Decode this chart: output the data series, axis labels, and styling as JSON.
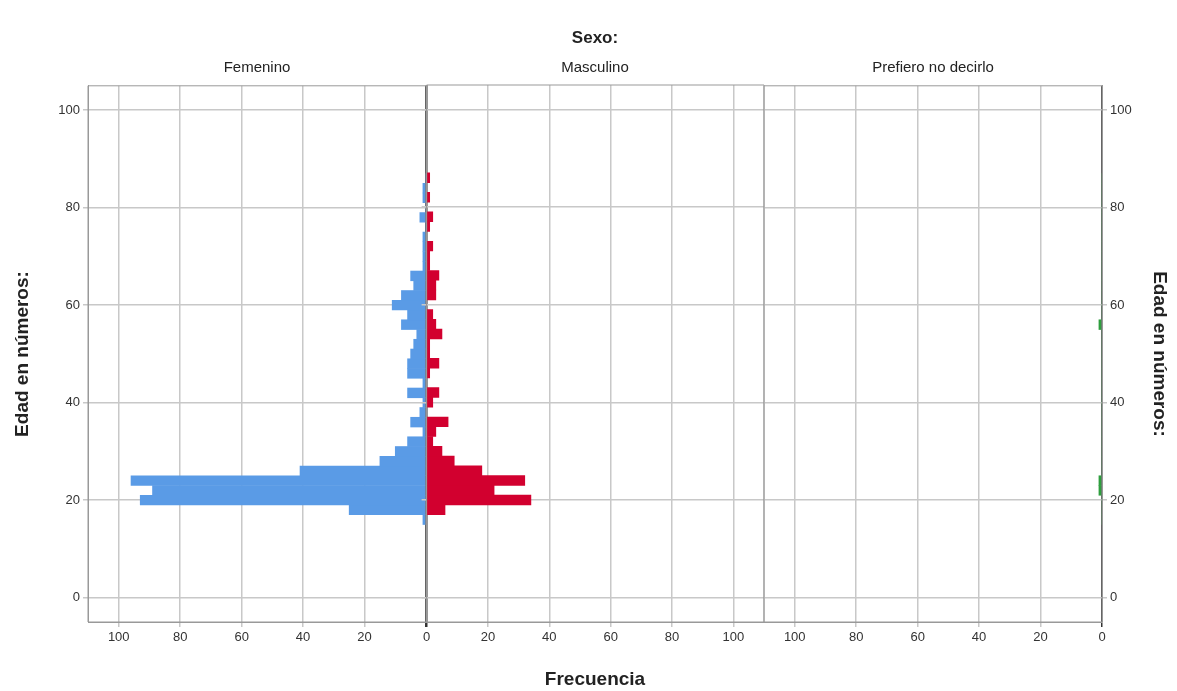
{
  "chart_data": [
    {
      "type": "histogram",
      "orientation": "horizontal",
      "subtitle": "Femenino",
      "ylabel": "Edad en números:",
      "color": "#5a9be6",
      "bins": [
        15,
        17,
        19,
        21,
        23,
        25,
        27,
        29,
        31,
        33,
        35,
        37,
        39,
        41,
        43,
        45,
        47,
        49,
        51,
        53,
        55,
        57,
        59,
        61,
        63,
        65,
        67,
        69,
        71,
        73,
        75,
        77,
        79,
        81,
        83,
        85,
        87
      ],
      "values": [
        1,
        25,
        93,
        89,
        96,
        41,
        15,
        10,
        6,
        1,
        5,
        2,
        1,
        6,
        1,
        6,
        6,
        5,
        4,
        3,
        8,
        6,
        11,
        8,
        4,
        5,
        1,
        1,
        1,
        1,
        0,
        2,
        0,
        1,
        1,
        0
      ],
      "xlim": [
        110,
        0
      ],
      "xticks": [
        100,
        80,
        60,
        40,
        20,
        {
          "value": 0,
          "label": null
        }
      ],
      "ylim": [
        -5,
        105
      ],
      "yticks": [
        0,
        20,
        40,
        60,
        80,
        100
      ],
      "grid": true
    },
    {
      "type": "histogram",
      "orientation": "horizontal",
      "title": "Sexo:",
      "subtitle": "Masculino",
      "xlabel": "Frecuencia",
      "color": "#d2002f",
      "tick_labels": "x",
      "bins": [
        15,
        17,
        19,
        21,
        23,
        25,
        27,
        29,
        31,
        33,
        35,
        37,
        39,
        41,
        43,
        45,
        47,
        49,
        51,
        53,
        55,
        57,
        59,
        61,
        63,
        65,
        67,
        69,
        71,
        73,
        75,
        77,
        79,
        81,
        83,
        85,
        87
      ],
      "values": [
        0,
        6,
        34,
        22,
        32,
        18,
        9,
        5,
        2,
        3,
        7,
        0,
        2,
        4,
        0,
        1,
        4,
        1,
        1,
        5,
        3,
        2,
        0,
        3,
        3,
        4,
        1,
        1,
        2,
        0,
        1,
        2,
        0,
        1,
        0,
        1
      ],
      "xlim": [
        0,
        110
      ],
      "xticks": [
        0,
        20,
        40,
        60,
        80,
        100
      ],
      "ylim": [
        -5,
        105
      ],
      "yticks": [
        0,
        20,
        40,
        60,
        80,
        100
      ],
      "grid": true
    },
    {
      "type": "histogram",
      "orientation": "horizontal",
      "subtitle": "Prefiero no decirlo",
      "ylabel": "Edad en números:",
      "color": "#2e9e3e",
      "bins": [
        15,
        17,
        19,
        21,
        23,
        25,
        27,
        29,
        31,
        33,
        35,
        37,
        39,
        41,
        43,
        45,
        47,
        49,
        51,
        53,
        55,
        57,
        59,
        61,
        63,
        65,
        67,
        69,
        71,
        73,
        75,
        77,
        79,
        81,
        83,
        85,
        87
      ],
      "values": [
        0,
        0,
        0,
        1,
        1,
        0,
        0,
        0,
        0,
        0,
        0,
        0,
        0,
        0,
        0,
        0,
        0,
        0,
        0,
        0,
        1,
        0,
        0,
        0,
        0,
        0,
        0,
        0,
        0,
        0,
        0,
        0,
        0,
        0,
        0,
        0
      ],
      "xlim": [
        110,
        0
      ],
      "xticks": [
        100,
        80,
        60,
        40,
        20,
        0
      ],
      "ylim": [
        -5,
        105
      ],
      "yticks": [
        0,
        20,
        40,
        60,
        80,
        100
      ],
      "grid": true
    }
  ]
}
